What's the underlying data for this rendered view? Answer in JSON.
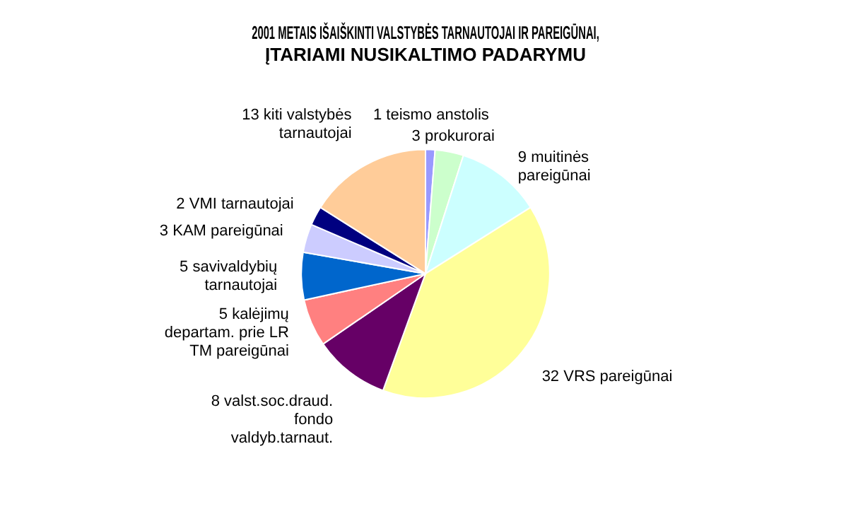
{
  "chart_data": {
    "type": "pie",
    "title": "2001 METAIS IŠAIŠKINTI VALSTYBĖS TARNAUTOJAI IR PAREIGŪNAI,\nĮTARIAMI NUSIKALTIMO PADARYMU",
    "categories": [
      "1 teismo anstolis",
      "3 prokurorai",
      "9 muitinės\npareigūnai",
      "32 VRS pareigūnai",
      "8 valst.soc.draud.\nfondo\nvaldyb.tarnaut.",
      "5 kalėjimų\ndepartam. prie LR\nTM pareigūnai",
      "5 savivaldybių\ntarnautojai",
      "3 KAM pareigūnai",
      "2 VMI tarnautojai",
      "13 kiti valstybės\ntarnautojai"
    ],
    "values": [
      1,
      3,
      9,
      32,
      8,
      5,
      5,
      3,
      2,
      13
    ],
    "colors": [
      "#9999ff",
      "#ccffcc",
      "#ccffff",
      "#ffff99",
      "#660066",
      "#ff8080",
      "#0066cc",
      "#ccccff",
      "#000080",
      "#ffcc99"
    ],
    "legend": false
  }
}
